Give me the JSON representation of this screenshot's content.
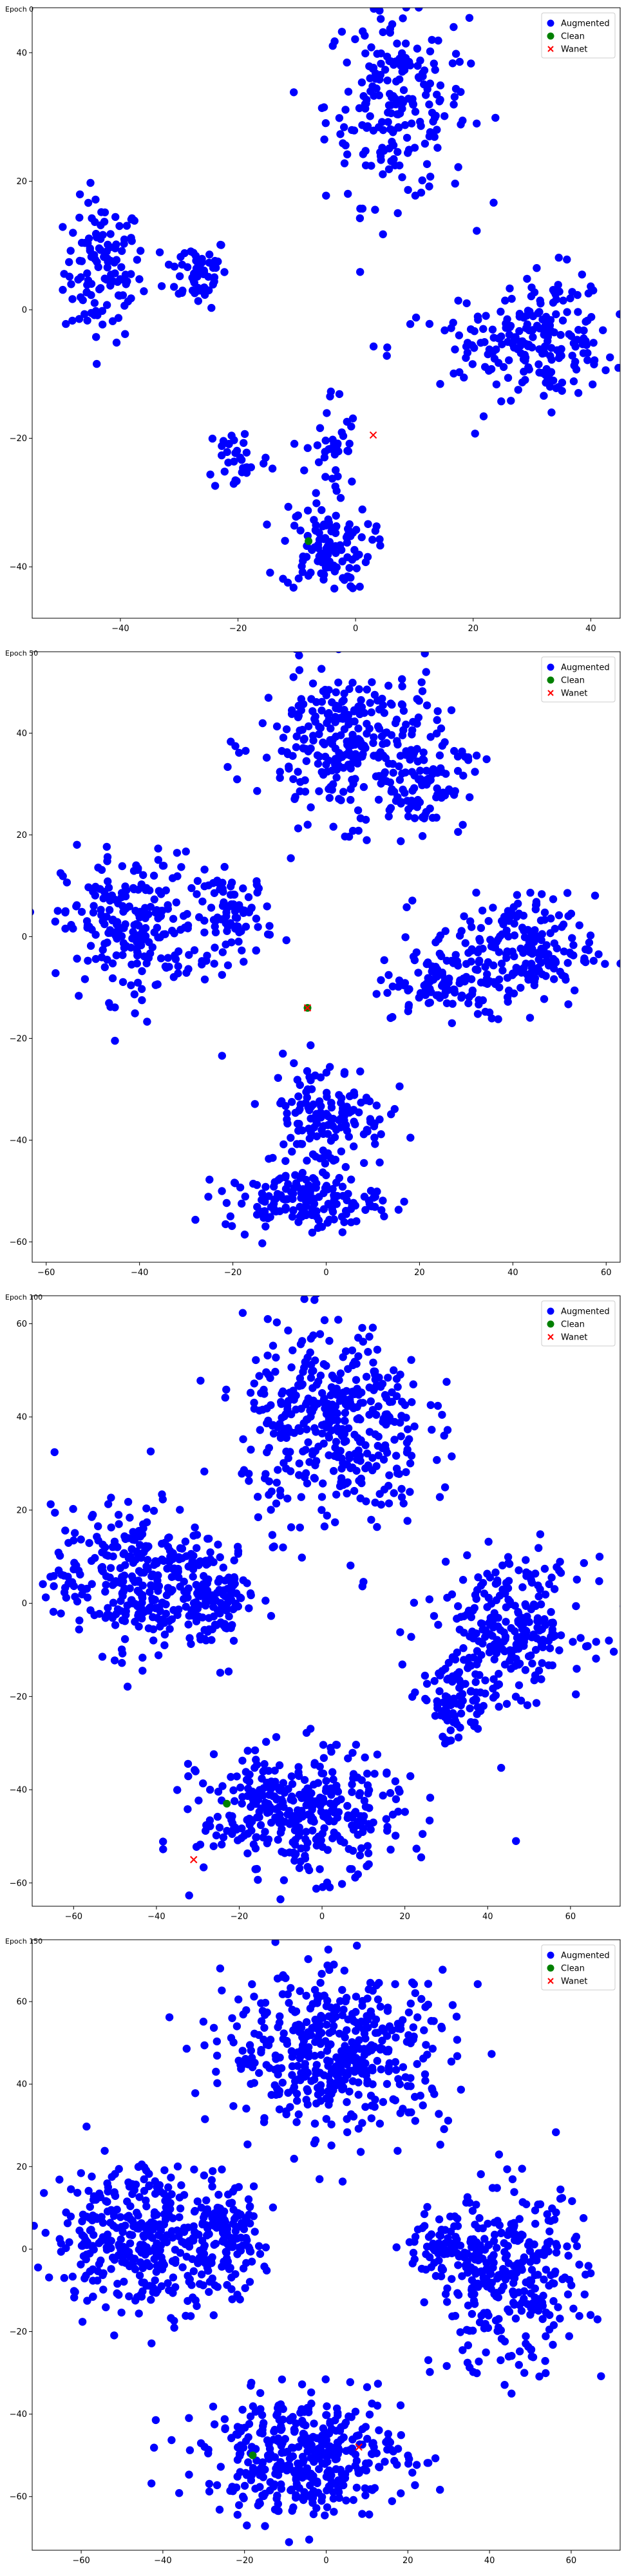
{
  "colors": {
    "augmented": "#0000ff",
    "clean": "#008000",
    "wanet": "#ff0000",
    "axis": "#000000",
    "background": "#ffffff"
  },
  "chart_data": [
    {
      "type": "scatter",
      "title": "Epoch 0",
      "xlim": [
        -55,
        45
      ],
      "ylim": [
        -48,
        47
      ],
      "xticks": [
        -40,
        -20,
        0,
        20,
        40
      ],
      "yticks": [
        -40,
        -20,
        0,
        20,
        40
      ],
      "legend": "top-right",
      "grid": false,
      "series": [
        {
          "name": "Augmented",
          "marker": "circle",
          "clusters": [
            {
              "cx": -43,
              "cy": 6,
              "rx": 6,
              "ry": 10,
              "n": 120
            },
            {
              "cx": -27,
              "cy": 6,
              "rx": 5,
              "ry": 5,
              "n": 60
            },
            {
              "cx": 7,
              "cy": 32,
              "rx": 11,
              "ry": 14,
              "n": 220
            },
            {
              "cx": 33,
              "cy": -4,
              "rx": 9,
              "ry": 9,
              "n": 120
            },
            {
              "cx": 26,
              "cy": -6,
              "rx": 18,
              "ry": 6,
              "n": 100
            },
            {
              "cx": -20,
              "cy": -23,
              "rx": 5,
              "ry": 5,
              "n": 35
            },
            {
              "cx": -4,
              "cy": -22,
              "rx": 4,
              "ry": 9,
              "n": 40
            },
            {
              "cx": -5,
              "cy": -37,
              "rx": 7,
              "ry": 6,
              "n": 110
            }
          ]
        },
        {
          "name": "Clean",
          "marker": "circle",
          "points": [
            [
              -8,
              -36
            ]
          ]
        },
        {
          "name": "Wanet",
          "marker": "x",
          "points": [
            [
              3,
              -19.5
            ]
          ]
        }
      ]
    },
    {
      "type": "scatter",
      "title": "Epoch 50",
      "xlim": [
        -63,
        63
      ],
      "ylim": [
        -64,
        56
      ],
      "xticks": [
        -60,
        -40,
        -20,
        0,
        20,
        40,
        60
      ],
      "yticks": [
        -60,
        -40,
        -20,
        0,
        20,
        40
      ],
      "legend": "top-right",
      "grid": false,
      "series": [
        {
          "name": "Augmented",
          "marker": "circle",
          "clusters": [
            {
              "cx": -42,
              "cy": 2,
              "rx": 13,
              "ry": 13,
              "n": 220
            },
            {
              "cx": -20,
              "cy": 4,
              "rx": 8,
              "ry": 8,
              "n": 90
            },
            {
              "cx": 5,
              "cy": 38,
              "rx": 18,
              "ry": 14,
              "n": 300
            },
            {
              "cx": 20,
              "cy": 30,
              "rx": 9,
              "ry": 8,
              "n": 80
            },
            {
              "cx": 40,
              "cy": -3,
              "rx": 16,
              "ry": 10,
              "n": 220
            },
            {
              "cx": 25,
              "cy": -10,
              "rx": 12,
              "ry": 5,
              "n": 80
            },
            {
              "cx": 0,
              "cy": -35,
              "rx": 12,
              "ry": 10,
              "n": 150
            },
            {
              "cx": -5,
              "cy": -52,
              "rx": 15,
              "ry": 5,
              "n": 160
            }
          ]
        },
        {
          "name": "Clean",
          "marker": "circle",
          "points": [
            [
              -4,
              -14
            ]
          ]
        },
        {
          "name": "Wanet",
          "marker": "x",
          "points": [
            [
              -4,
              -14
            ]
          ]
        }
      ]
    },
    {
      "type": "scatter",
      "title": "Epoch 100",
      "xlim": [
        -70,
        72
      ],
      "ylim": [
        -65,
        66
      ],
      "xticks": [
        -60,
        -40,
        -20,
        0,
        20,
        40,
        60
      ],
      "yticks": [
        -60,
        -40,
        -20,
        0,
        20,
        40,
        60
      ],
      "legend": "top-right",
      "grid": false,
      "series": [
        {
          "name": "Augmented",
          "marker": "circle",
          "clusters": [
            {
              "cx": -45,
              "cy": 5,
              "rx": 18,
              "ry": 14,
              "n": 320
            },
            {
              "cx": -25,
              "cy": 2,
              "rx": 8,
              "ry": 10,
              "n": 100
            },
            {
              "cx": 3,
              "cy": 38,
              "rx": 20,
              "ry": 20,
              "n": 420
            },
            {
              "cx": 45,
              "cy": -5,
              "rx": 17,
              "ry": 13,
              "n": 260
            },
            {
              "cx": 32,
              "cy": -22,
              "rx": 8,
              "ry": 8,
              "n": 80
            },
            {
              "cx": -5,
              "cy": -45,
              "rx": 22,
              "ry": 12,
              "n": 380
            }
          ]
        },
        {
          "name": "Clean",
          "marker": "circle",
          "points": [
            [
              -23,
              -43
            ]
          ]
        },
        {
          "name": "Wanet",
          "marker": "x",
          "points": [
            [
              -31,
              -55
            ]
          ]
        }
      ]
    },
    {
      "type": "scatter",
      "title": "Epoch 150",
      "xlim": [
        -72,
        72
      ],
      "ylim": [
        -73,
        75
      ],
      "xticks": [
        -60,
        -40,
        -20,
        0,
        20,
        40,
        60
      ],
      "yticks": [
        -60,
        -40,
        -20,
        0,
        20,
        40,
        60
      ],
      "legend": "top-right",
      "grid": false,
      "series": [
        {
          "name": "Augmented",
          "marker": "circle",
          "clusters": [
            {
              "cx": -45,
              "cy": 3,
              "rx": 20,
              "ry": 16,
              "n": 380
            },
            {
              "cx": -25,
              "cy": 2,
              "rx": 9,
              "ry": 11,
              "n": 120
            },
            {
              "cx": 3,
              "cy": 48,
              "rx": 25,
              "ry": 17,
              "n": 480
            },
            {
              "cx": 45,
              "cy": -8,
              "rx": 17,
              "ry": 20,
              "n": 320
            },
            {
              "cx": 30,
              "cy": 0,
              "rx": 9,
              "ry": 6,
              "n": 70
            },
            {
              "cx": -5,
              "cy": -50,
              "rx": 22,
              "ry": 13,
              "n": 420
            }
          ]
        },
        {
          "name": "Clean",
          "marker": "circle",
          "points": [
            [
              -18,
              -50
            ]
          ]
        },
        {
          "name": "Wanet",
          "marker": "x",
          "points": [
            [
              8,
              -48
            ]
          ]
        }
      ]
    }
  ]
}
